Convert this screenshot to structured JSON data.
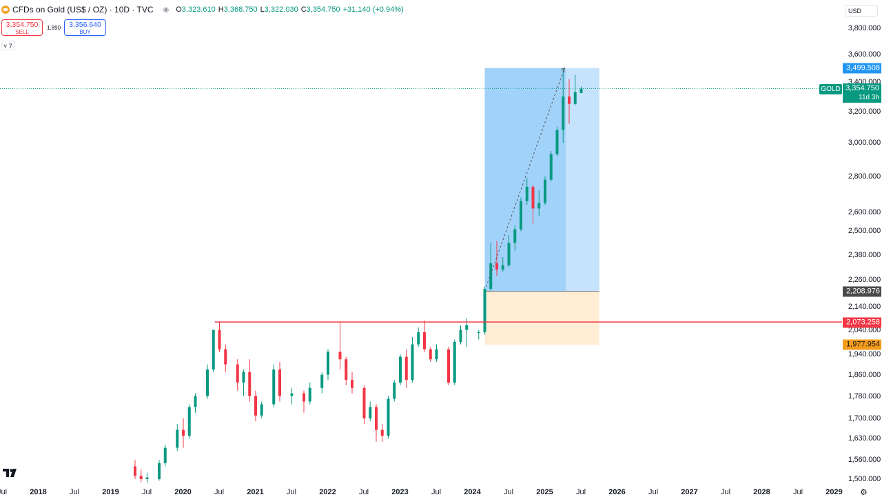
{
  "header": {
    "symbol_icon": "gold-coin-icon",
    "title": "CFDs on Gold (US$ / OZ) · 10D · TVC",
    "visibility_icon": "eye-icon",
    "ohlc": {
      "o_label": "O",
      "o": "3,323.610",
      "h_label": "H",
      "h": "3,368.750",
      "l_label": "L",
      "l": "3,322.030",
      "c_label": "C",
      "c": "3,354.750",
      "change": "+31.140 (+0.94%)"
    }
  },
  "trade": {
    "sell_price": "3,354.750",
    "sell_label": "SELL",
    "spread": "1,890",
    "buy_price": "3,356.640",
    "buy_label": "BUY"
  },
  "indicators_toggle": {
    "icon": "chevron-down-icon",
    "count": "7"
  },
  "currency": "USD",
  "colors": {
    "up": "#089981",
    "down": "#f23645",
    "profit_zone": "#2196f3",
    "loss_zone": "#ff9800",
    "line": "#f23645"
  },
  "price_axis": {
    "ticks": [
      "3,800.000",
      "3,600.000",
      "3,400.000",
      "3,200.000",
      "3,000.000",
      "2,800.000",
      "2,600.000",
      "2,500.000",
      "2,380.000",
      "2,260.000",
      "2,140.000",
      "2,040.000",
      "1,940.000",
      "1,860.000",
      "1,780.000",
      "1,700.000",
      "1,630.000",
      "1,560.000",
      "1,500.000"
    ],
    "target_label": "3,499.508",
    "entry_label": "2,208.976",
    "line_label": "2,073.258",
    "stop_label": "1,977.954",
    "symbol_tag": "GOLD",
    "last_price": "3,354.750",
    "countdown": "11d 3h"
  },
  "time_axis": {
    "labels": [
      "Jul",
      "2018",
      "Jul",
      "2019",
      "Jul",
      "2020",
      "Jul",
      "2021",
      "Jul",
      "2022",
      "Jul",
      "2023",
      "Jul",
      "2024",
      "Jul",
      "2025",
      "Jul",
      "2026",
      "Jul",
      "2027",
      "Jul",
      "2028",
      "Jul",
      "2029"
    ],
    "settings_icon": "gear-icon"
  },
  "logo": "tradingview-logo",
  "chart_data": {
    "type": "candlestick",
    "title": "CFDs on Gold (US$ / OZ) · 10D · TVC",
    "timeframe": "10D",
    "y_scale": "log",
    "ylim": [
      1480,
      3950
    ],
    "x_range": [
      "2017-07",
      "2029-01"
    ],
    "horizontal_line": 2073.258,
    "long_position": {
      "entry": 2208.976,
      "target": 3499.508,
      "stop": 1977.954,
      "start": "2024-03",
      "end": "2025-10"
    },
    "last_price": 3354.75,
    "candles_approx": [
      [
        "2019-05",
        1540,
        1560,
        1500,
        1510
      ],
      [
        "2019-06",
        1510,
        1530,
        1490,
        1500
      ],
      [
        "2019-07",
        1500,
        1520,
        1490,
        1505
      ],
      [
        "2019-09",
        1500,
        1560,
        1495,
        1550
      ],
      [
        "2019-10",
        1550,
        1610,
        1540,
        1600
      ],
      [
        "2019-12",
        1600,
        1680,
        1590,
        1660
      ],
      [
        "2020-01",
        1660,
        1700,
        1600,
        1640
      ],
      [
        "2020-02",
        1640,
        1750,
        1630,
        1740
      ],
      [
        "2020-03",
        1740,
        1790,
        1720,
        1780
      ],
      [
        "2020-05",
        1780,
        1900,
        1770,
        1880
      ],
      [
        "2020-06",
        1880,
        2040,
        1870,
        2040
      ],
      [
        "2020-07",
        2040,
        2075,
        1950,
        1960
      ],
      [
        "2020-08",
        1960,
        1980,
        1870,
        1900
      ],
      [
        "2020-10",
        1900,
        1920,
        1800,
        1830
      ],
      [
        "2020-11",
        1830,
        1880,
        1780,
        1870
      ],
      [
        "2020-12",
        1870,
        1920,
        1760,
        1780
      ],
      [
        "2021-01",
        1780,
        1800,
        1690,
        1710
      ],
      [
        "2021-02",
        1710,
        1760,
        1700,
        1750
      ],
      [
        "2021-04",
        1750,
        1900,
        1740,
        1880
      ],
      [
        "2021-05",
        1880,
        1910,
        1760,
        1780
      ],
      [
        "2021-07",
        1780,
        1810,
        1750,
        1790
      ],
      [
        "2021-09",
        1790,
        1800,
        1720,
        1760
      ],
      [
        "2021-10",
        1760,
        1830,
        1750,
        1810
      ],
      [
        "2021-12",
        1810,
        1870,
        1790,
        1860
      ],
      [
        "2022-01",
        1860,
        1960,
        1840,
        1950
      ],
      [
        "2022-03",
        1950,
        2070,
        1880,
        1920
      ],
      [
        "2022-04",
        1920,
        1930,
        1820,
        1840
      ],
      [
        "2022-05",
        1840,
        1870,
        1790,
        1810
      ],
      [
        "2022-07",
        1810,
        1820,
        1680,
        1700
      ],
      [
        "2022-08",
        1700,
        1760,
        1690,
        1740
      ],
      [
        "2022-09",
        1740,
        1750,
        1620,
        1660
      ],
      [
        "2022-10",
        1660,
        1680,
        1620,
        1640
      ],
      [
        "2022-11",
        1640,
        1780,
        1630,
        1770
      ],
      [
        "2022-12",
        1770,
        1840,
        1760,
        1830
      ],
      [
        "2023-01",
        1830,
        1940,
        1820,
        1930
      ],
      [
        "2023-02",
        1930,
        1960,
        1810,
        1840
      ],
      [
        "2023-03",
        1840,
        2010,
        1830,
        1980
      ],
      [
        "2023-04",
        1980,
        2050,
        1970,
        2030
      ],
      [
        "2023-05",
        2030,
        2080,
        1950,
        1960
      ],
      [
        "2023-06",
        1960,
        1970,
        1910,
        1920
      ],
      [
        "2023-07",
        1920,
        1980,
        1910,
        1960
      ],
      [
        "2023-09",
        1960,
        1970,
        1820,
        1830
      ],
      [
        "2023-10",
        1830,
        2000,
        1820,
        1990
      ],
      [
        "2023-11",
        1990,
        2060,
        1980,
        2040
      ],
      [
        "2023-12",
        2040,
        2090,
        1970,
        2060
      ],
      [
        "2024-02",
        2030,
        2040,
        2000,
        2030
      ],
      [
        "2024-03",
        2030,
        2230,
        2020,
        2220
      ],
      [
        "2024-04",
        2220,
        2440,
        2210,
        2340
      ],
      [
        "2024-05",
        2340,
        2450,
        2280,
        2310
      ],
      [
        "2024-06",
        2310,
        2370,
        2300,
        2330
      ],
      [
        "2024-07",
        2330,
        2480,
        2320,
        2440
      ],
      [
        "2024-08",
        2440,
        2530,
        2400,
        2510
      ],
      [
        "2024-09",
        2510,
        2680,
        2500,
        2660
      ],
      [
        "2024-10",
        2660,
        2790,
        2640,
        2740
      ],
      [
        "2024-11",
        2740,
        2750,
        2540,
        2620
      ],
      [
        "2024-12",
        2620,
        2720,
        2580,
        2650
      ],
      [
        "2025-01",
        2650,
        2800,
        2640,
        2780
      ],
      [
        "2025-02",
        2780,
        2950,
        2770,
        2930
      ],
      [
        "2025-03",
        2930,
        3100,
        2920,
        3080
      ],
      [
        "2025-04",
        3080,
        3500,
        3000,
        3300
      ],
      [
        "2025-05",
        3300,
        3420,
        3120,
        3250
      ],
      [
        "2025-06",
        3250,
        3450,
        3240,
        3330
      ],
      [
        "2025-07",
        3323.61,
        3368.75,
        3322.03,
        3354.75
      ]
    ]
  }
}
